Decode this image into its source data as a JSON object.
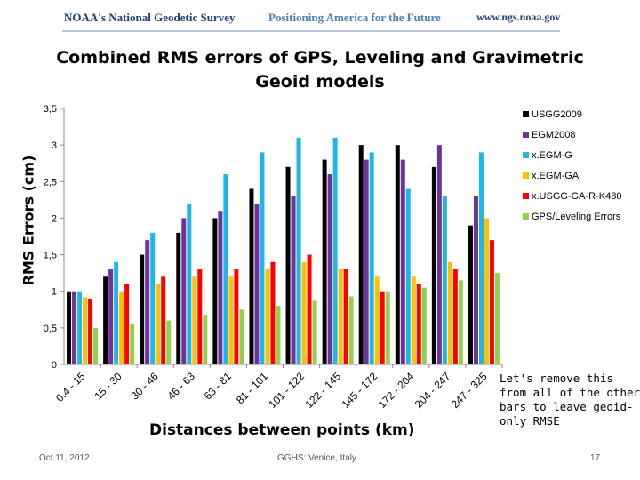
{
  "header": {
    "org": "NOAA's National Geodetic Survey",
    "tagline": "Positioning America for the Future",
    "url": "www.ngs.noaa.gov"
  },
  "chart_data": {
    "type": "bar",
    "title": "Combined RMS errors of GPS, Leveling and Gravimetric Geoid models",
    "xlabel": "Distances between points (km)",
    "ylabel": "RMS Errors (cm)",
    "ylim": [
      0,
      3.5
    ],
    "yticks": [
      "0",
      "0,5",
      "1",
      "1,5",
      "2",
      "2,5",
      "3",
      "3,5"
    ],
    "grid": false,
    "legend_position": "right",
    "categories": [
      "0.4 - 15",
      "15 - 30",
      "30 - 46",
      "46 - 63",
      "63 - 81",
      "81 - 101",
      "101 - 122",
      "122 - 145",
      "145 - 172",
      "172 - 204",
      "204 - 247",
      "247 - 325"
    ],
    "series": [
      {
        "name": "USGG2009",
        "color": "#000000",
        "values": [
          1.0,
          1.2,
          1.5,
          1.8,
          2.0,
          2.4,
          2.7,
          2.8,
          3.0,
          3.0,
          2.7,
          1.9
        ]
      },
      {
        "name": "EGM2008",
        "color": "#7030a0",
        "values": [
          1.0,
          1.3,
          1.7,
          2.0,
          2.1,
          2.2,
          2.3,
          2.6,
          2.8,
          2.8,
          3.0,
          2.3
        ]
      },
      {
        "name": "x.EGM-G",
        "color": "#1fb8e6",
        "values": [
          1.0,
          1.4,
          1.8,
          2.2,
          2.6,
          2.9,
          3.1,
          3.1,
          2.9,
          2.4,
          2.3,
          2.9
        ]
      },
      {
        "name": "x.EGM-GA",
        "color": "#ffc000",
        "values": [
          0.92,
          1.0,
          1.1,
          1.2,
          1.2,
          1.3,
          1.4,
          1.3,
          1.2,
          1.2,
          1.4,
          2.0
        ]
      },
      {
        "name": "x.USGG-GA-R-K480",
        "color": "#ff0000",
        "values": [
          0.9,
          1.1,
          1.2,
          1.3,
          1.3,
          1.4,
          1.5,
          1.3,
          1.0,
          1.1,
          1.3,
          1.7
        ]
      },
      {
        "name": "GPS/Leveling Errors",
        "color": "#92d050",
        "values": [
          0.5,
          0.55,
          0.6,
          0.68,
          0.75,
          0.8,
          0.87,
          0.93,
          1.0,
          1.05,
          1.15,
          1.25
        ]
      }
    ]
  },
  "annotation": "Let's remove this from all of the other bars to leave geoid-only RMSE",
  "footer": {
    "date": "Oct 11, 2012",
    "event": "GGHS: Venice, Italy",
    "page": "17"
  }
}
